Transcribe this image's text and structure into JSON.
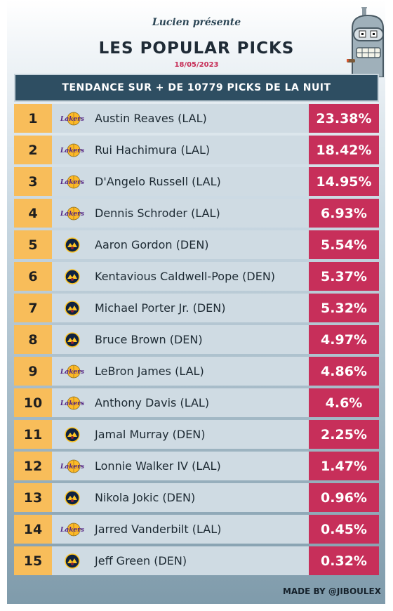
{
  "header": {
    "presents": "Lucien présente",
    "title": "LES POPULAR PICKS",
    "date": "18/05/2023"
  },
  "banner": "TENDANCE SUR + DE 10779 PICKS DE LA NUIT",
  "picks": [
    {
      "rank": "1",
      "player": "Austin Reaves (LAL)",
      "team": "lakers",
      "pct": "23.38%"
    },
    {
      "rank": "2",
      "player": "Rui Hachimura (LAL)",
      "team": "lakers",
      "pct": "18.42%"
    },
    {
      "rank": "3",
      "player": "D'Angelo Russell (LAL)",
      "team": "lakers",
      "pct": "14.95%"
    },
    {
      "rank": "4",
      "player": "Dennis Schroder (LAL)",
      "team": "lakers",
      "pct": "6.93%"
    },
    {
      "rank": "5",
      "player": "Aaron Gordon (DEN)",
      "team": "nuggets",
      "pct": "5.54%"
    },
    {
      "rank": "6",
      "player": "Kentavious Caldwell-Pope (DEN)",
      "team": "nuggets",
      "pct": "5.37%"
    },
    {
      "rank": "7",
      "player": "Michael Porter Jr. (DEN)",
      "team": "nuggets",
      "pct": "5.32%"
    },
    {
      "rank": "8",
      "player": "Bruce Brown (DEN)",
      "team": "nuggets",
      "pct": "4.97%"
    },
    {
      "rank": "9",
      "player": "LeBron James (LAL)",
      "team": "lakers",
      "pct": "4.86%"
    },
    {
      "rank": "10",
      "player": "Anthony Davis (LAL)",
      "team": "lakers",
      "pct": "4.6%"
    },
    {
      "rank": "11",
      "player": "Jamal Murray (DEN)",
      "team": "nuggets",
      "pct": "2.25%"
    },
    {
      "rank": "12",
      "player": "Lonnie Walker IV (LAL)",
      "team": "lakers",
      "pct": "1.47%"
    },
    {
      "rank": "13",
      "player": "Nikola Jokic (DEN)",
      "team": "nuggets",
      "pct": "0.96%"
    },
    {
      "rank": "14",
      "player": "Jarred Vanderbilt (LAL)",
      "team": "lakers",
      "pct": "0.45%"
    },
    {
      "rank": "15",
      "player": "Jeff Green (DEN)",
      "team": "nuggets",
      "pct": "0.32%"
    }
  ],
  "logos": {
    "lakers": {
      "text": "Lakers",
      "icon": "lakers-logo-icon",
      "color_primary": "#552583",
      "color_secondary": "#fdb927"
    },
    "nuggets": {
      "icon": "nuggets-logo-icon",
      "color_primary": "#0e2240",
      "color_secondary": "#fec524"
    }
  },
  "footer": "MADE BY @JIBOULEX",
  "mascot_icon": "robot-mascot-icon",
  "colors": {
    "rank_bg": "#f8bd5a",
    "pct_bg": "#c72f5a",
    "banner_bg": "#2e4e62",
    "date": "#c62b55"
  }
}
